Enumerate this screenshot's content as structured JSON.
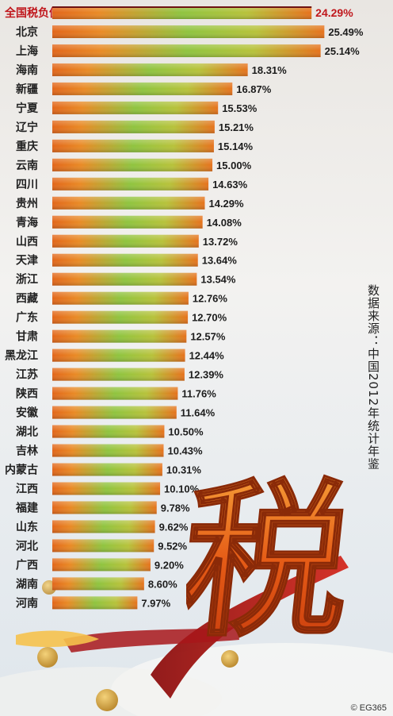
{
  "chart_data": {
    "type": "bar",
    "orientation": "horizontal",
    "categories": [
      "全国税负值",
      "北京",
      "上海",
      "海南",
      "新疆",
      "宁夏",
      "辽宁",
      "重庆",
      "云南",
      "四川",
      "贵州",
      "青海",
      "山西",
      "天津",
      "浙江",
      "西藏",
      "广东",
      "甘肃",
      "黑龙江",
      "江苏",
      "陕西",
      "安徽",
      "湖北",
      "吉林",
      "内蒙古",
      "江西",
      "福建",
      "山东",
      "河北",
      "广西",
      "湖南",
      "河南"
    ],
    "values": [
      24.29,
      25.49,
      25.14,
      18.31,
      16.87,
      15.53,
      15.21,
      15.14,
      15.0,
      14.63,
      14.29,
      14.08,
      13.72,
      13.64,
      13.54,
      12.76,
      12.7,
      12.57,
      12.44,
      12.39,
      11.76,
      11.64,
      10.5,
      10.43,
      10.31,
      10.1,
      9.78,
      9.62,
      9.52,
      9.2,
      8.6,
      7.97
    ],
    "value_labels": [
      "24.29%",
      "25.49%",
      "25.14%",
      "18.31%",
      "16.87%",
      "15.53%",
      "15.21%",
      "15.14%",
      "15.00%",
      "14.63%",
      "14.29%",
      "14.08%",
      "13.72%",
      "13.64%",
      "13.54%",
      "12.76%",
      "12.70%",
      "12.57%",
      "12.44%",
      "12.39%",
      "11.76%",
      "11.64%",
      "10.50%",
      "10.43%",
      "10.31%",
      "10.10%",
      "9.78%",
      "9.62%",
      "9.52%",
      "9.20%",
      "8.60%",
      "7.97%"
    ],
    "highlight_index": 0,
    "unit": "%",
    "grid": false,
    "legend": "none",
    "colors": {
      "orange": "#e8761c",
      "green": "#8cc63f",
      "highlight_text": "#c0171c",
      "text": "#222222"
    }
  },
  "source_note": "数据来源：中国2012年统计年鉴",
  "credit": "© EG365",
  "decoration": {
    "big_character": "税"
  }
}
